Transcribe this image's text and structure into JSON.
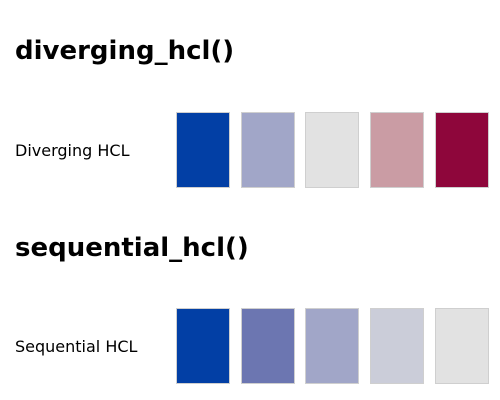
{
  "sections": [
    {
      "heading": "diverging_hcl()",
      "label": "Diverging HCL",
      "swatches": [
        "#023FA5",
        "#A1A6C8",
        "#E2E2E2",
        "#CA9CA4",
        "#8E063B"
      ]
    },
    {
      "heading": "sequential_hcl()",
      "label": "Sequential HCL",
      "swatches": [
        "#023FA5",
        "#6C76B1",
        "#A1A6C8",
        "#CBCDD9",
        "#E2E2E2"
      ]
    }
  ]
}
